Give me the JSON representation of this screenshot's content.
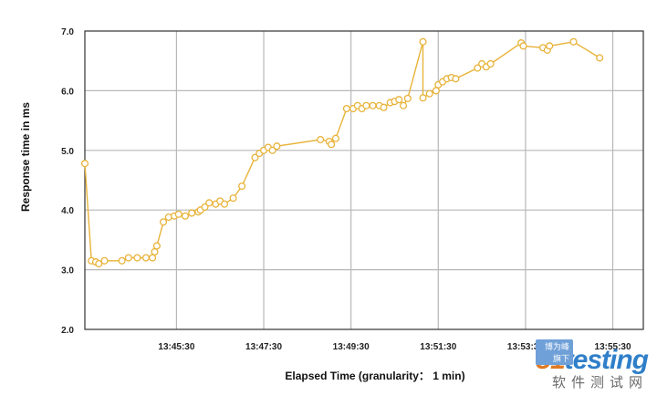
{
  "chart_data": {
    "type": "line",
    "xlabel": "Elapsed Time (granularity： 1 min)",
    "ylabel": "Response time in ms",
    "ylim": [
      2.0,
      7.0
    ],
    "yticks": [
      "2.0",
      "3.0",
      "4.0",
      "5.0",
      "6.0",
      "7.0"
    ],
    "xticks": [
      "13:45:30",
      "13:47:30",
      "13:49:30",
      "13:51:30",
      "13:53:30",
      "13:55:30"
    ],
    "xtick_values": [
      2.1,
      4.1,
      6.1,
      8.1,
      10.1,
      12.1
    ],
    "xlim": [
      0,
      12.8
    ],
    "grid": true,
    "colors": {
      "line": "#e8b33a",
      "grid": "#b8b8b8",
      "frame": "#333333"
    },
    "series": [
      {
        "values": [
          [
            0.0,
            4.78
          ],
          [
            0.15,
            3.15
          ],
          [
            0.25,
            3.13
          ],
          [
            0.32,
            3.1
          ],
          [
            0.45,
            3.15
          ],
          [
            0.85,
            3.15
          ],
          [
            1.0,
            3.2
          ],
          [
            1.2,
            3.2
          ],
          [
            1.4,
            3.2
          ],
          [
            1.55,
            3.2
          ],
          [
            1.6,
            3.3
          ],
          [
            1.65,
            3.4
          ],
          [
            1.8,
            3.8
          ],
          [
            1.92,
            3.88
          ],
          [
            2.05,
            3.9
          ],
          [
            2.15,
            3.93
          ],
          [
            2.3,
            3.9
          ],
          [
            2.45,
            3.95
          ],
          [
            2.6,
            3.97
          ],
          [
            2.65,
            4.0
          ],
          [
            2.75,
            4.05
          ],
          [
            2.85,
            4.12
          ],
          [
            3.0,
            4.1
          ],
          [
            3.1,
            4.15
          ],
          [
            3.2,
            4.1
          ],
          [
            3.4,
            4.2
          ],
          [
            3.6,
            4.4
          ],
          [
            3.9,
            4.88
          ],
          [
            4.0,
            4.95
          ],
          [
            4.1,
            5.0
          ],
          [
            4.2,
            5.05
          ],
          [
            4.3,
            5.0
          ],
          [
            4.4,
            5.07
          ],
          [
            5.4,
            5.18
          ],
          [
            5.6,
            5.15
          ],
          [
            5.65,
            5.1
          ],
          [
            5.75,
            5.2
          ],
          [
            6.0,
            5.7
          ],
          [
            6.15,
            5.7
          ],
          [
            6.25,
            5.75
          ],
          [
            6.35,
            5.7
          ],
          [
            6.45,
            5.75
          ],
          [
            6.6,
            5.75
          ],
          [
            6.75,
            5.75
          ],
          [
            6.85,
            5.72
          ],
          [
            7.0,
            5.8
          ],
          [
            7.1,
            5.82
          ],
          [
            7.2,
            5.85
          ],
          [
            7.3,
            5.75
          ],
          [
            7.4,
            5.87
          ],
          [
            7.75,
            6.82
          ],
          [
            7.75,
            5.88
          ],
          [
            7.9,
            5.95
          ],
          [
            8.05,
            6.0
          ],
          [
            8.1,
            6.1
          ],
          [
            8.2,
            6.15
          ],
          [
            8.3,
            6.2
          ],
          [
            8.4,
            6.22
          ],
          [
            8.5,
            6.2
          ],
          [
            9.0,
            6.38
          ],
          [
            9.1,
            6.45
          ],
          [
            9.2,
            6.4
          ],
          [
            9.3,
            6.45
          ],
          [
            10.0,
            6.8
          ],
          [
            10.05,
            6.75
          ],
          [
            10.5,
            6.72
          ],
          [
            10.6,
            6.68
          ],
          [
            10.65,
            6.75
          ],
          [
            11.2,
            6.82
          ],
          [
            11.8,
            6.55
          ]
        ]
      }
    ]
  },
  "watermark": {
    "tag": "博为峰旗下",
    "logo_main": "testing",
    "logo_prefix": "51",
    "subtitle": "软件测试网"
  }
}
